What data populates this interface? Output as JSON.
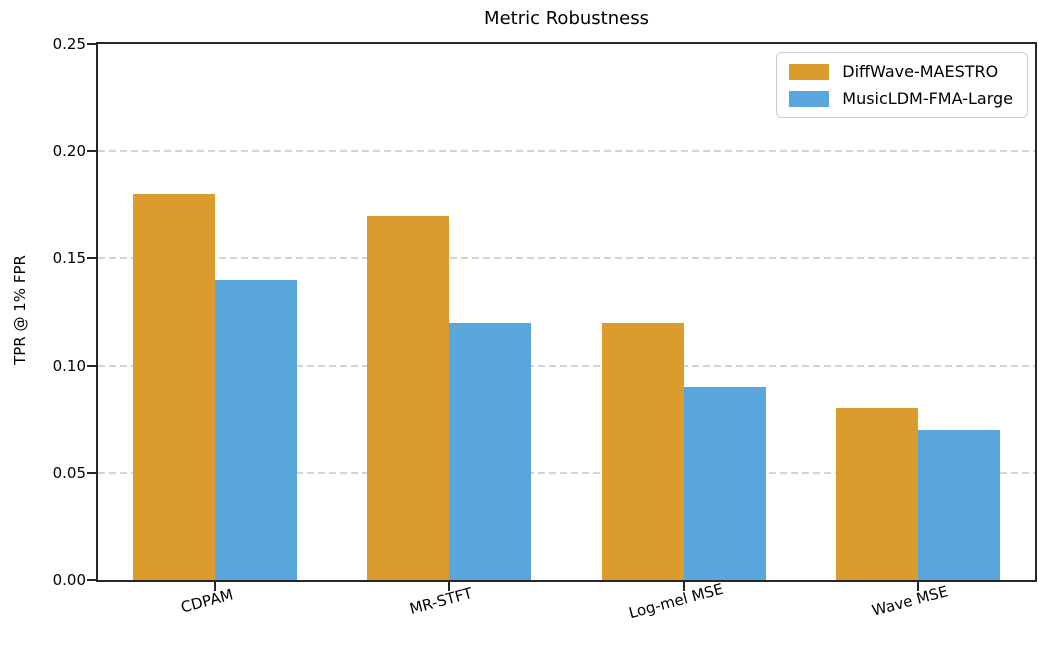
{
  "chart_data": {
    "type": "bar",
    "title": "Metric Robustness",
    "xlabel": "",
    "ylabel": "TPR @ 1% FPR",
    "categories": [
      "CDPAM",
      "MR-STFT",
      "Log-mel MSE",
      "Wave MSE"
    ],
    "series": [
      {
        "name": "DiffWave-MAESTRO",
        "color": "#dc9b2d",
        "values": [
          0.18,
          0.17,
          0.12,
          0.08
        ]
      },
      {
        "name": "MusicLDM-FMA-Large",
        "color": "#58a6dc",
        "values": [
          0.14,
          0.12,
          0.09,
          0.07
        ]
      }
    ],
    "ylim": [
      0,
      0.25
    ],
    "yticks": [
      0.0,
      0.05,
      0.1,
      0.15,
      0.2,
      0.25
    ],
    "ytick_labels": [
      "0.00",
      "0.05",
      "0.10",
      "0.15",
      "0.20",
      "0.25"
    ],
    "grid": "horizontal-dashed",
    "legend_position": "upper-right",
    "x_tick_label_rotation_deg": 15,
    "colors": {
      "spine": "#262626",
      "gridline": "#d4d4d4",
      "background": "#ffffff",
      "text": "#000000"
    }
  }
}
